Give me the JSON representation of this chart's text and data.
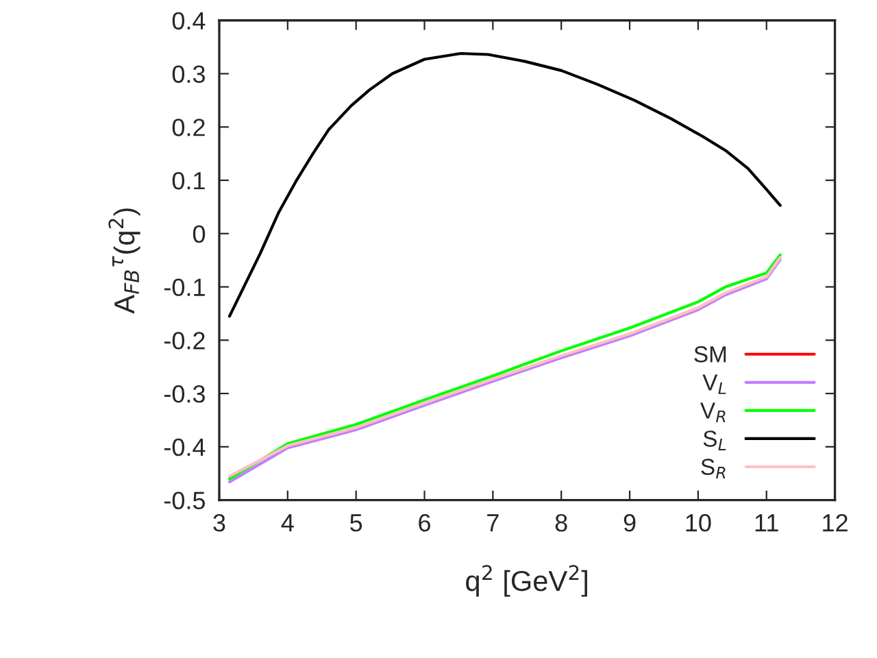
{
  "chart_data": {
    "type": "line",
    "xlabel": "q$^{2}$ [GeV$^{2}$]",
    "ylabel": "A$_{FB}$$^{τ}$(q$^{2}$)",
    "xlim": [
      3,
      12
    ],
    "ylim": [
      -0.5,
      0.4
    ],
    "xticks": [
      3,
      4,
      5,
      6,
      7,
      8,
      9,
      10,
      11,
      12
    ],
    "yticks": [
      -0.5,
      -0.4,
      -0.3,
      -0.2,
      -0.1,
      0,
      0.1,
      0.2,
      0.3,
      0.4
    ],
    "grid": false,
    "legend": "bottom right",
    "marker": "none",
    "line_style": "solid",
    "series": [
      {
        "name": "SM",
        "color": "#ff0000"
      },
      {
        "name": "V$_{L}$",
        "color": "#c080ff",
        "x": [
          3.15,
          4,
          5,
          6,
          7,
          8,
          9,
          10,
          10.4,
          11,
          11.2
        ],
        "values": [
          -0.466,
          -0.402,
          -0.368,
          -0.322,
          -0.277,
          -0.233,
          -0.192,
          -0.143,
          -0.115,
          -0.085,
          -0.049
        ]
      },
      {
        "name": "V$_{R}$",
        "color": "#00ff00",
        "x": [
          3.15,
          4,
          5,
          6,
          7,
          8,
          9,
          10,
          10.4,
          11,
          11.2
        ],
        "values": [
          -0.46,
          -0.394,
          -0.358,
          -0.312,
          -0.267,
          -0.22,
          -0.177,
          -0.128,
          -0.1,
          -0.074,
          -0.04
        ]
      },
      {
        "name": "S$_{L}$",
        "color": "#000000",
        "x": [
          3.15,
          3.6,
          3.87,
          4.13,
          4.37,
          4.6,
          4.93,
          5.2,
          5.53,
          6.0,
          6.53,
          6.93,
          7.47,
          8.0,
          8.53,
          9.07,
          9.6,
          10.07,
          10.4,
          10.73,
          11.0,
          11.2
        ],
        "values": [
          -0.155,
          -0.037,
          0.04,
          0.1,
          0.15,
          0.195,
          0.24,
          0.27,
          0.3,
          0.327,
          0.338,
          0.336,
          0.323,
          0.306,
          0.28,
          0.25,
          0.216,
          0.182,
          0.156,
          0.122,
          0.083,
          0.053
        ]
      },
      {
        "name": "S$_{R}$",
        "color": "#ffc0c0",
        "x": [
          3.15,
          4,
          5,
          6,
          7,
          8,
          9,
          10,
          10.4,
          11,
          11.2
        ],
        "values": [
          -0.455,
          -0.398,
          -0.364,
          -0.318,
          -0.273,
          -0.229,
          -0.188,
          -0.139,
          -0.111,
          -0.081,
          -0.045
        ]
      }
    ]
  }
}
